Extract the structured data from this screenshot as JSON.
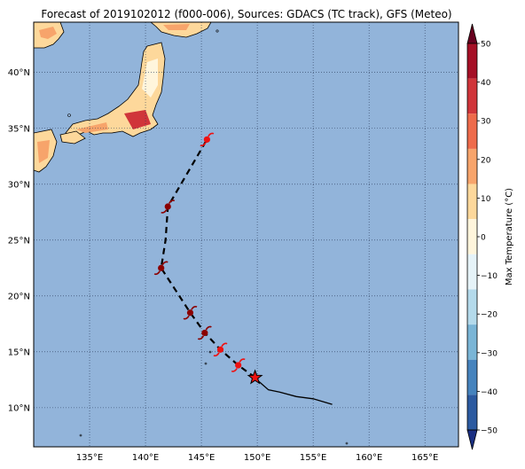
{
  "title": "Forecast of 2019102012 (f000-006), Sources: GDACS (TC track), GFS (Meteo)",
  "map": {
    "lon_range": [
      130,
      168
    ],
    "lat_range": [
      6.5,
      44.5
    ],
    "lon_ticks": [
      {
        "value": 135,
        "label": "135°E"
      },
      {
        "value": 140,
        "label": "140°E"
      },
      {
        "value": 145,
        "label": "145°E"
      },
      {
        "value": 150,
        "label": "150°E"
      },
      {
        "value": 155,
        "label": "155°E"
      },
      {
        "value": 160,
        "label": "160°E"
      },
      {
        "value": 165,
        "label": "165°E"
      }
    ],
    "lat_ticks": [
      {
        "value": 10,
        "label": "10°N"
      },
      {
        "value": 15,
        "label": "15°N"
      },
      {
        "value": 20,
        "label": "20°N"
      },
      {
        "value": 25,
        "label": "25°N"
      },
      {
        "value": 30,
        "label": "30°N"
      },
      {
        "value": 35,
        "label": "35°N"
      },
      {
        "value": 40,
        "label": "40°N"
      }
    ],
    "ocean_color": "#92b4da",
    "grid": "dotted"
  },
  "track": {
    "past_track": [
      [
        156.7,
        10.3
      ],
      [
        155,
        10.8
      ],
      [
        153.5,
        11
      ],
      [
        152,
        11.4
      ],
      [
        151,
        11.6
      ],
      [
        150.2,
        12.3
      ],
      [
        149.8,
        12.7
      ]
    ],
    "forecast_track": [
      [
        149.8,
        12.7
      ],
      [
        148.3,
        13.8
      ],
      [
        146.7,
        15.2
      ],
      [
        145.3,
        16.7
      ],
      [
        144,
        18.5
      ],
      [
        141.4,
        22.5
      ],
      [
        141.8,
        25
      ],
      [
        142,
        28
      ],
      [
        145.5,
        34
      ]
    ],
    "current_position": [
      149.8,
      12.7
    ],
    "symbols": [
      {
        "lon": 148.3,
        "lat": 13.8,
        "color": "#ee1111"
      },
      {
        "lon": 146.7,
        "lat": 15.2,
        "color": "#ee1111"
      },
      {
        "lon": 145.3,
        "lat": 16.7,
        "color": "#8b0000"
      },
      {
        "lon": 144.0,
        "lat": 18.5,
        "color": "#8b0000"
      },
      {
        "lon": 141.4,
        "lat": 22.5,
        "color": "#8b0000"
      },
      {
        "lon": 142.0,
        "lat": 28.0,
        "color": "#8b0000"
      },
      {
        "lon": 145.5,
        "lat": 34.0,
        "color": "#ee1111"
      }
    ]
  },
  "colorbar": {
    "label": "Max Temperature (°C)",
    "ticks": [
      "50",
      "40",
      "30",
      "20",
      "10",
      "0",
      "−10",
      "−20",
      "−30",
      "−40",
      "−50"
    ],
    "colors": [
      "#67001f",
      "#a50f26",
      "#d0353a",
      "#ee6b4b",
      "#f7a46b",
      "#fdd89b",
      "#fff5dc",
      "#e6f3f8",
      "#b4daeb",
      "#7ab5d6",
      "#4683bd",
      "#2c5aa0",
      "#1a2f82"
    ]
  }
}
